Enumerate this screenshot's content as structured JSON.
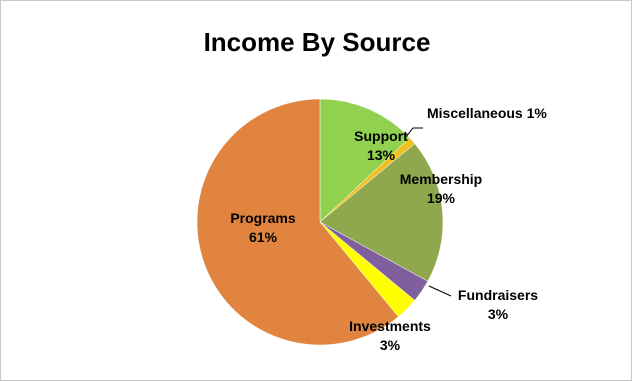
{
  "chart_data": {
    "type": "pie",
    "title": "Income By Source",
    "slices": [
      {
        "label": "Support",
        "pct_label": "13%",
        "value": 13,
        "color": "#92d050"
      },
      {
        "label": "Miscellaneous",
        "pct_label": "1%",
        "value": 1,
        "color": "#f0c020"
      },
      {
        "label": "Membership",
        "pct_label": "19%",
        "value": 19,
        "color": "#8fa84e"
      },
      {
        "label": "Fundraisers",
        "pct_label": "3%",
        "value": 3,
        "color": "#7f5f9e"
      },
      {
        "label": "Investments",
        "pct_label": "3%",
        "value": 3,
        "color": "#ffff00"
      },
      {
        "label": "Programs",
        "pct_label": "61%",
        "value": 61,
        "color": "#e0843f"
      }
    ],
    "start_angle_deg": 0,
    "direction": "clockwise",
    "legend": "none"
  }
}
